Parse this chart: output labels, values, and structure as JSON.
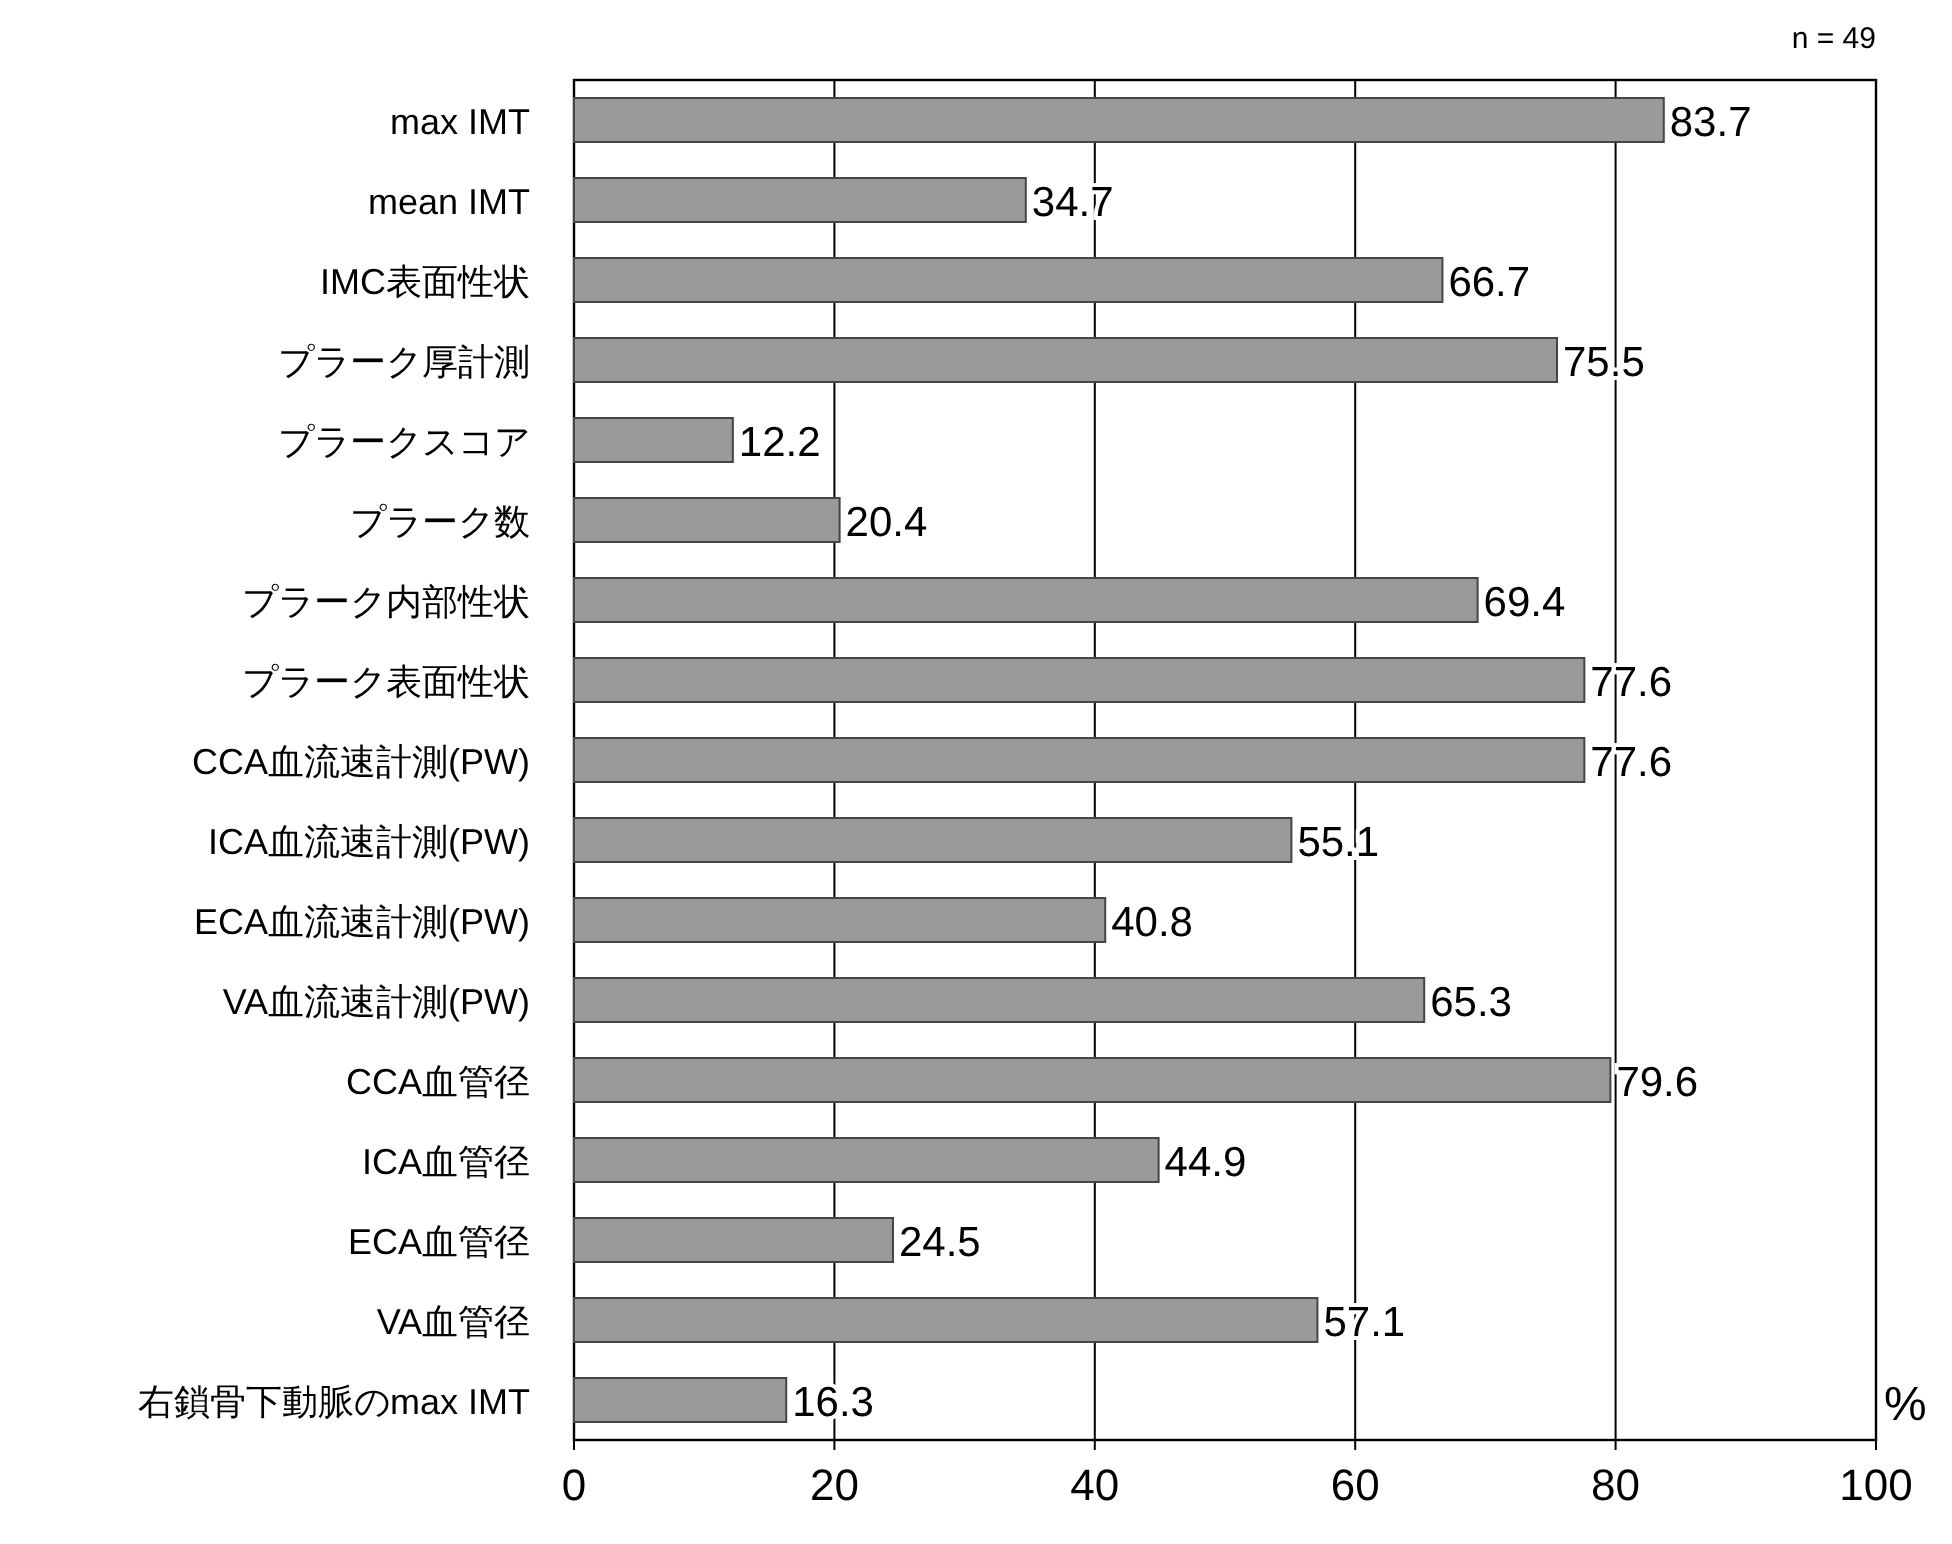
{
  "chart_data": {
    "type": "bar",
    "orientation": "horizontal",
    "categories": [
      "max IMT",
      "mean IMT",
      "IMC表面性状",
      "プラーク厚計測",
      "プラークスコア",
      "プラーク数",
      "プラーク内部性状",
      "プラーク表面性状",
      "CCA血流速計測(PW)",
      "ICA血流速計測(PW)",
      "ECA血流速計測(PW)",
      "VA血流速計測(PW)",
      "CCA血管径",
      "ICA血管径",
      "ECA血管径",
      "VA血管径",
      "右鎖骨下動脈のmax IMT"
    ],
    "values": [
      83.7,
      34.7,
      66.7,
      75.5,
      12.2,
      20.4,
      69.4,
      77.6,
      77.6,
      55.1,
      40.8,
      65.3,
      79.6,
      44.9,
      24.5,
      57.1,
      16.3
    ],
    "color": "#9a9a9a",
    "xlim": [
      0,
      100
    ],
    "xticks": [
      0,
      20,
      40,
      60,
      80,
      100
    ],
    "xlabel": "%",
    "annotations": [
      "n = 49"
    ],
    "grid": "x",
    "data_labels": true
  }
}
